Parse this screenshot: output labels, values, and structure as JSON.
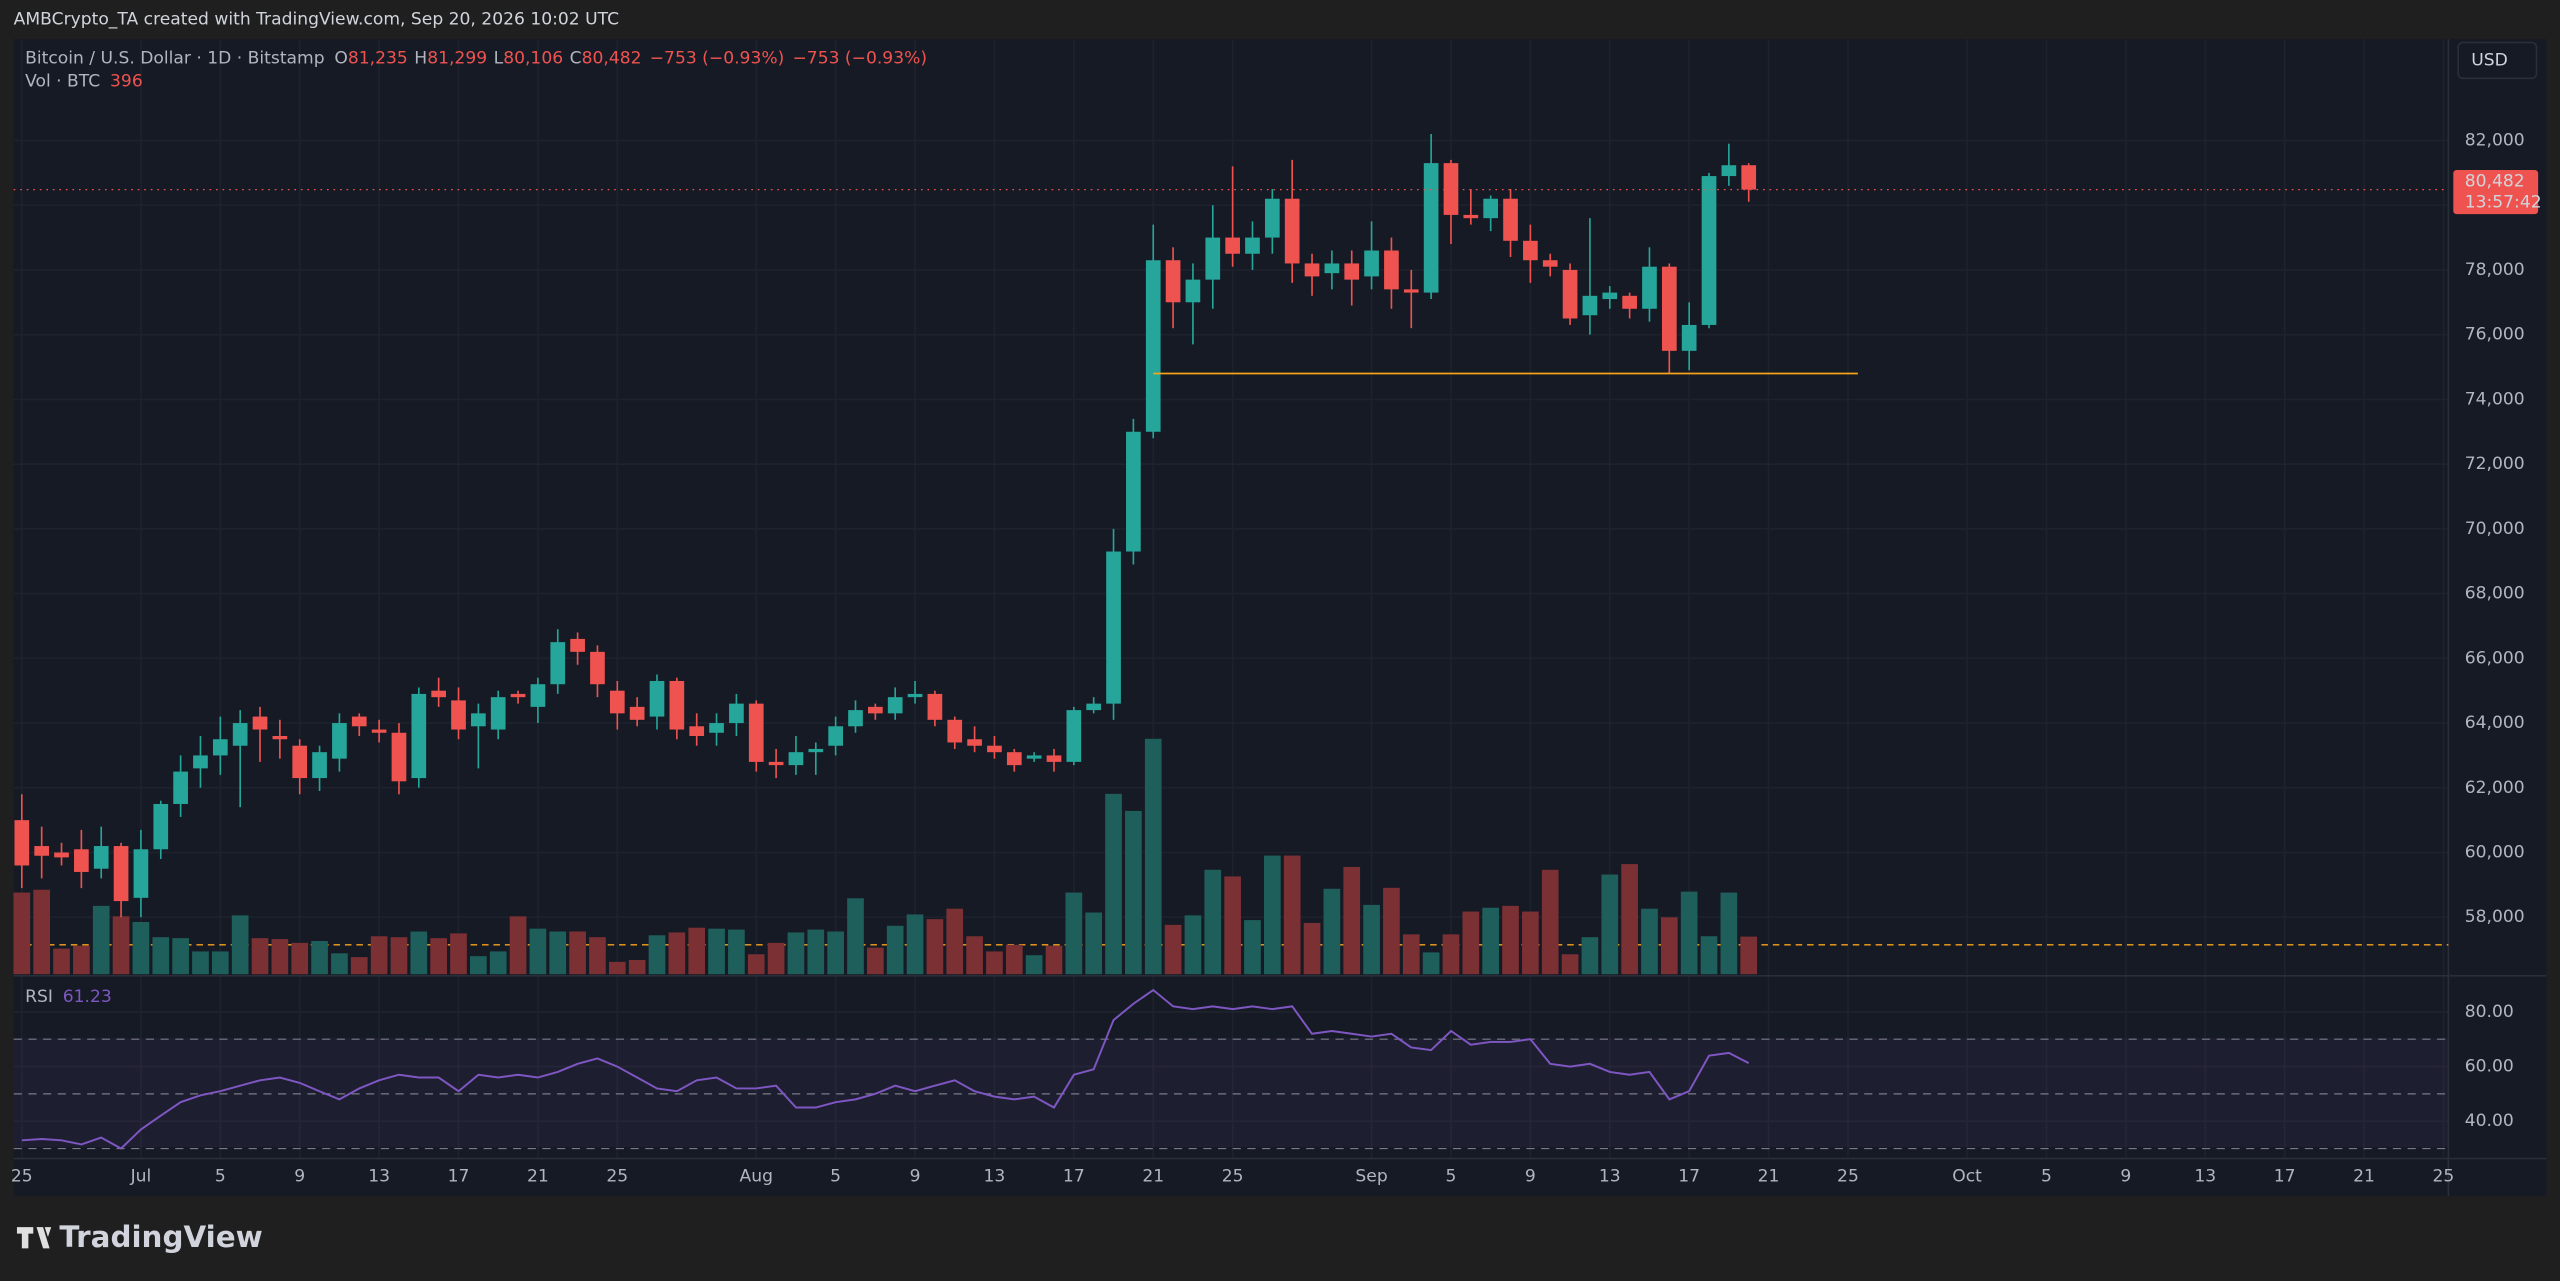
{
  "header": {
    "text": "AMBCrypto_TA created with TradingView.com, Sep 20, 2026 10:02 UTC"
  },
  "footer": {
    "logo": "TradingView"
  },
  "currency_button": "USD",
  "chart_data": {
    "type": "candlestick",
    "legend": {
      "symbol": "Bitcoin / U.S. Dollar · 1D · Bitstamp",
      "fields": [
        {
          "key": "O",
          "value": "81,235"
        },
        {
          "key": "H",
          "value": "81,299"
        },
        {
          "key": "L",
          "value": "80,106"
        },
        {
          "key": "C",
          "value": "80,482"
        }
      ],
      "changes": [
        "−753 (−0.93%)",
        "−753 (−0.93%)"
      ]
    },
    "volume_title": "Vol · BTC",
    "rsi_title": "RSI",
    "up_color": "#26a69a",
    "down_color": "#ef5350",
    "vol_up_color": "#1f5f5b",
    "vol_down_color": "#7b3034",
    "rsi_color": "#7e57c2",
    "price_label": {
      "price": "80,482",
      "countdown": "13:57:42"
    },
    "ohlc": [
      [
        61000,
        61800,
        58900,
        59600
      ],
      [
        60200,
        60800,
        59200,
        59900
      ],
      [
        60000,
        60300,
        59600,
        59850
      ],
      [
        60100,
        60700,
        58900,
        59400
      ],
      [
        59500,
        60800,
        59200,
        60200
      ],
      [
        60200,
        60300,
        58000,
        58500
      ],
      [
        58600,
        60700,
        58000,
        60100
      ],
      [
        60100,
        61600,
        59800,
        61500
      ],
      [
        61500,
        63000,
        61100,
        62500
      ],
      [
        62600,
        63600,
        62000,
        63000
      ],
      [
        63000,
        64200,
        62400,
        63500
      ],
      [
        63300,
        64400,
        61400,
        64000
      ],
      [
        64200,
        64500,
        62800,
        63800
      ],
      [
        63600,
        64100,
        62900,
        63500
      ],
      [
        63300,
        63500,
        61800,
        62300
      ],
      [
        62300,
        63300,
        61900,
        63100
      ],
      [
        62900,
        64300,
        62500,
        64000
      ],
      [
        64200,
        64300,
        63600,
        63900
      ],
      [
        63800,
        64100,
        63400,
        63700
      ],
      [
        63700,
        64000,
        61800,
        62200
      ],
      [
        62300,
        65100,
        62000,
        64900
      ],
      [
        65000,
        65400,
        64500,
        64800
      ],
      [
        64700,
        65100,
        63500,
        63800
      ],
      [
        63900,
        64600,
        62600,
        64300
      ],
      [
        63800,
        65000,
        63500,
        64800
      ],
      [
        64900,
        65000,
        64600,
        64800
      ],
      [
        64500,
        65400,
        64000,
        65200
      ],
      [
        65200,
        66900,
        64900,
        66500
      ],
      [
        66600,
        66800,
        65800,
        66200
      ],
      [
        66200,
        66400,
        64800,
        65200
      ],
      [
        65000,
        65300,
        63800,
        64300
      ],
      [
        64500,
        64800,
        63900,
        64100
      ],
      [
        64200,
        65500,
        63800,
        65300
      ],
      [
        65300,
        65400,
        63500,
        63800
      ],
      [
        63900,
        64300,
        63300,
        63600
      ],
      [
        63700,
        64300,
        63300,
        64000
      ],
      [
        64000,
        64900,
        63600,
        64600
      ],
      [
        64600,
        64700,
        62500,
        62800
      ],
      [
        62800,
        63200,
        62300,
        62700
      ],
      [
        62700,
        63600,
        62400,
        63100
      ],
      [
        63100,
        63400,
        62400,
        63200
      ],
      [
        63300,
        64200,
        63000,
        63900
      ],
      [
        63900,
        64700,
        63700,
        64400
      ],
      [
        64500,
        64600,
        64100,
        64300
      ],
      [
        64300,
        65100,
        64100,
        64800
      ],
      [
        64800,
        65300,
        64600,
        64900
      ],
      [
        64900,
        65000,
        63900,
        64100
      ],
      [
        64100,
        64200,
        63200,
        63400
      ],
      [
        63500,
        63900,
        63100,
        63300
      ],
      [
        63300,
        63600,
        62900,
        63100
      ],
      [
        63100,
        63200,
        62500,
        62700
      ],
      [
        62900,
        63100,
        62800,
        63000
      ],
      [
        63000,
        63200,
        62500,
        62800
      ],
      [
        62800,
        64500,
        62700,
        64400
      ],
      [
        64400,
        64800,
        64300,
        64600
      ],
      [
        64600,
        70000,
        64100,
        69300
      ],
      [
        69300,
        73400,
        68900,
        73000
      ],
      [
        73000,
        79400,
        72800,
        78300
      ],
      [
        78300,
        78700,
        76200,
        77000
      ],
      [
        77000,
        78200,
        75700,
        77700
      ],
      [
        77700,
        80000,
        76800,
        79000
      ],
      [
        79000,
        81200,
        78100,
        78500
      ],
      [
        78500,
        79500,
        78000,
        79000
      ],
      [
        79000,
        80500,
        78500,
        80200
      ],
      [
        80200,
        81400,
        77600,
        78200
      ],
      [
        78200,
        78500,
        77200,
        77800
      ],
      [
        77900,
        78600,
        77400,
        78200
      ],
      [
        78200,
        78600,
        76900,
        77700
      ],
      [
        77800,
        79500,
        77400,
        78600
      ],
      [
        78600,
        79000,
        76800,
        77400
      ],
      [
        77400,
        78000,
        76200,
        77300
      ],
      [
        77300,
        82200,
        77100,
        81300
      ],
      [
        81300,
        81400,
        78800,
        79700
      ],
      [
        79700,
        80500,
        79400,
        79600
      ],
      [
        79600,
        80300,
        79200,
        80200
      ],
      [
        80200,
        80500,
        78400,
        78900
      ],
      [
        78900,
        79400,
        77600,
        78300
      ],
      [
        78300,
        78500,
        77800,
        78100
      ],
      [
        78000,
        78200,
        76300,
        76500
      ],
      [
        76600,
        79600,
        76000,
        77200
      ],
      [
        77100,
        77500,
        76800,
        77300
      ],
      [
        77200,
        77300,
        76500,
        76800
      ],
      [
        76800,
        78700,
        76400,
        78100
      ],
      [
        78100,
        78200,
        74800,
        75500
      ],
      [
        75500,
        77000,
        74900,
        76300
      ],
      [
        76300,
        81000,
        76200,
        80900
      ],
      [
        80900,
        81900,
        80600,
        81235
      ],
      [
        81235,
        81299,
        80106,
        80482
      ]
    ],
    "volume": [
      860,
      890,
      270,
      300,
      720,
      610,
      550,
      390,
      380,
      240,
      240,
      620,
      380,
      370,
      330,
      350,
      220,
      180,
      400,
      390,
      450,
      380,
      430,
      190,
      240,
      610,
      480,
      450,
      450,
      390,
      130,
      150,
      410,
      440,
      490,
      480,
      470,
      210,
      330,
      440,
      470,
      450,
      800,
      280,
      510,
      630,
      580,
      690,
      400,
      240,
      310,
      200,
      300,
      860,
      650,
      1900,
      1720,
      2480,
      520,
      620,
      1100,
      1030,
      570,
      1250,
      1250,
      540,
      900,
      1130,
      730,
      910,
      420,
      230,
      420,
      660,
      700,
      720,
      660,
      1100,
      210,
      390,
      1050,
      1160,
      690,
      600,
      870,
      400,
      860,
      396
    ],
    "rsi": [
      33,
      33.5,
      33,
      31.5,
      34,
      30,
      37,
      42,
      47,
      49.5,
      51,
      53,
      55,
      56,
      54,
      51,
      48,
      52,
      55,
      57,
      56,
      56,
      51,
      57,
      56,
      57,
      56,
      58,
      61,
      63,
      60,
      56,
      52,
      51,
      55,
      56,
      52,
      52,
      53,
      45,
      45,
      47,
      48,
      50,
      53,
      51,
      53,
      55,
      51,
      49,
      48,
      49,
      45,
      57,
      59,
      77,
      83,
      88,
      82,
      81,
      82,
      81,
      82,
      81,
      82,
      72,
      73,
      72,
      71,
      72,
      67,
      66,
      73,
      68,
      69,
      69,
      70,
      61,
      60,
      61,
      58,
      57,
      58,
      48,
      51,
      64,
      65,
      61.23
    ],
    "rsi_levels": [
      30,
      50,
      70
    ],
    "hline": {
      "value": 74800,
      "x": [
        57,
        92.5
      ],
      "color": "#f7a21b"
    },
    "xlim": [
      -0.41,
      122.25
    ],
    "ylim": [
      56240,
      85130
    ],
    "vol_ylim": [
      0,
      9850
    ],
    "rsi_ylim": [
      29.3,
      89.6
    ],
    "xticks": [
      {
        "value": 0,
        "label": "25"
      },
      {
        "value": 6,
        "label": "Jul"
      },
      {
        "value": 10,
        "label": "5"
      },
      {
        "value": 14,
        "label": "9"
      },
      {
        "value": 18,
        "label": "13"
      },
      {
        "value": 22,
        "label": "17"
      },
      {
        "value": 26,
        "label": "21"
      },
      {
        "value": 30,
        "label": "25"
      },
      {
        "value": 37,
        "label": "Aug"
      },
      {
        "value": 41,
        "label": "5"
      },
      {
        "value": 45,
        "label": "9"
      },
      {
        "value": 49,
        "label": "13"
      },
      {
        "value": 53,
        "label": "17"
      },
      {
        "value": 57,
        "label": "21"
      },
      {
        "value": 61,
        "label": "25"
      },
      {
        "value": 68,
        "label": "Sep"
      },
      {
        "value": 72,
        "label": "5"
      },
      {
        "value": 76,
        "label": "9"
      },
      {
        "value": 80,
        "label": "13"
      },
      {
        "value": 84,
        "label": "17"
      },
      {
        "value": 88,
        "label": "21"
      },
      {
        "value": 92,
        "label": "25"
      },
      {
        "value": 98,
        "label": "Oct"
      },
      {
        "value": 102,
        "label": "5"
      },
      {
        "value": 106,
        "label": "9"
      },
      {
        "value": 110,
        "label": "13"
      },
      {
        "value": 114,
        "label": "17"
      },
      {
        "value": 118,
        "label": "21"
      },
      {
        "value": 122,
        "label": "25"
      }
    ],
    "yticks": [
      {
        "value": 58000,
        "label": "58,000"
      },
      {
        "value": 60000,
        "label": "60,000"
      },
      {
        "value": 62000,
        "label": "62,000"
      },
      {
        "value": 64000,
        "label": "64,000"
      },
      {
        "value": 66000,
        "label": "66,000"
      },
      {
        "value": 68000,
        "label": "68,000"
      },
      {
        "value": 70000,
        "label": "70,000"
      },
      {
        "value": 72000,
        "label": "72,000"
      },
      {
        "value": 74000,
        "label": "74,000"
      },
      {
        "value": 76000,
        "label": "76,000"
      },
      {
        "value": 78000,
        "label": "78,000"
      },
      {
        "value": 80000,
        "label": "80,000"
      },
      {
        "value": 82000,
        "label": "82,000"
      }
    ],
    "rsi_ticks": [
      {
        "value": 40,
        "label": "40.00"
      },
      {
        "value": 60,
        "label": "60.00"
      },
      {
        "value": 80,
        "label": "80.00"
      }
    ],
    "grid": true
  }
}
